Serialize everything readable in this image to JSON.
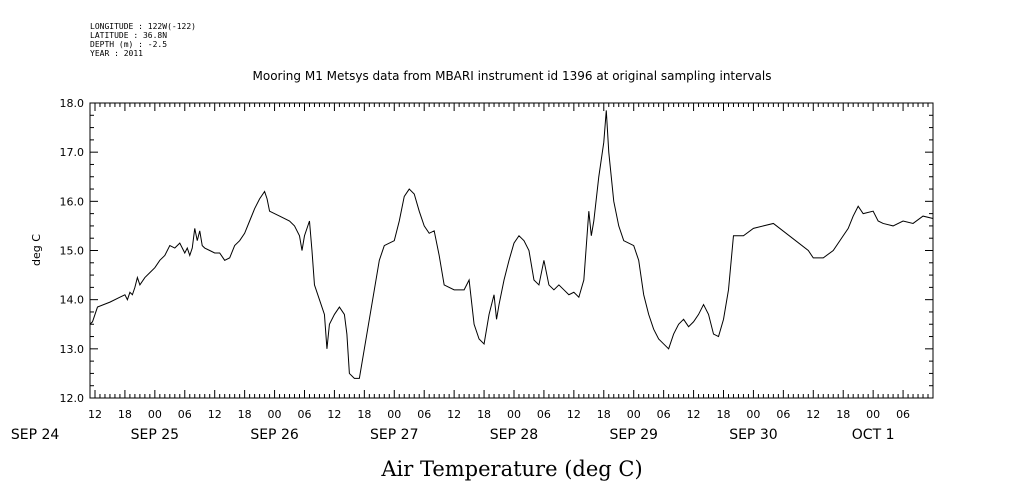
{
  "meta": {
    "longitude": "LONGITUDE : 122W(-122)",
    "latitude": "LATITUDE : 36.8N",
    "depth": "DEPTH (m) : -2.5",
    "year": "YEAR : 2011"
  },
  "chart_data": {
    "type": "line",
    "title": "Mooring M1 Metsys data from MBARI instrument id 1396 at original sampling intervals",
    "xlabel": "Air Temperature (deg C)",
    "ylabel": "deg C",
    "ylim": [
      12.0,
      18.0
    ],
    "xlim": [
      "2011-09-24T11:00",
      "2011-10-01T12:00"
    ],
    "yticks": [
      "12.0",
      "13.0",
      "14.0",
      "15.0",
      "16.0",
      "17.0",
      "18.0"
    ],
    "xtick_hours": [
      "12",
      "18",
      "00",
      "06",
      "12",
      "18",
      "00",
      "06",
      "12",
      "18",
      "00",
      "06",
      "12",
      "18",
      "00",
      "06",
      "12",
      "18",
      "00",
      "06",
      "12",
      "18",
      "00",
      "06",
      "12",
      "18",
      "00",
      "06"
    ],
    "day_labels": [
      {
        "label": "SEP 24",
        "date": "2011-09-24"
      },
      {
        "label": "SEP 25",
        "date": "2011-09-25"
      },
      {
        "label": "SEP 26",
        "date": "2011-09-26"
      },
      {
        "label": "SEP 27",
        "date": "2011-09-27"
      },
      {
        "label": "SEP 28",
        "date": "2011-09-28"
      },
      {
        "label": "SEP 29",
        "date": "2011-09-29"
      },
      {
        "label": "SEP 30",
        "date": "2011-09-30"
      },
      {
        "label": "OCT  1",
        "date": "2011-10-01"
      }
    ],
    "grid": false,
    "series": [
      {
        "color": "#000000",
        "points": [
          [
            "2011-09-24T11:00",
            13.5
          ],
          [
            "2011-09-24T11:30",
            13.55
          ],
          [
            "2011-09-24T12:00",
            13.7
          ],
          [
            "2011-09-24T12:30",
            13.85
          ],
          [
            "2011-09-24T15:00",
            13.95
          ],
          [
            "2011-09-24T17:00",
            14.05
          ],
          [
            "2011-09-24T18:00",
            14.1
          ],
          [
            "2011-09-24T18:30",
            14.0
          ],
          [
            "2011-09-24T19:00",
            14.15
          ],
          [
            "2011-09-24T19:30",
            14.1
          ],
          [
            "2011-09-24T20:00",
            14.25
          ],
          [
            "2011-09-24T20:30",
            14.45
          ],
          [
            "2011-09-24T21:00",
            14.3
          ],
          [
            "2011-09-24T22:00",
            14.45
          ],
          [
            "2011-09-24T23:00",
            14.55
          ],
          [
            "2011-09-25T00:00",
            14.65
          ],
          [
            "2011-09-25T01:00",
            14.8
          ],
          [
            "2011-09-25T02:00",
            14.9
          ],
          [
            "2011-09-25T03:00",
            15.1
          ],
          [
            "2011-09-25T04:00",
            15.05
          ],
          [
            "2011-09-25T05:00",
            15.15
          ],
          [
            "2011-09-25T06:00",
            14.95
          ],
          [
            "2011-09-25T06:30",
            15.05
          ],
          [
            "2011-09-25T07:00",
            14.9
          ],
          [
            "2011-09-25T07:30",
            15.05
          ],
          [
            "2011-09-25T08:00",
            15.45
          ],
          [
            "2011-09-25T08:30",
            15.2
          ],
          [
            "2011-09-25T09:00",
            15.4
          ],
          [
            "2011-09-25T09:30",
            15.1
          ],
          [
            "2011-09-25T10:00",
            15.05
          ],
          [
            "2011-09-25T11:00",
            15.0
          ],
          [
            "2011-09-25T12:00",
            14.95
          ],
          [
            "2011-09-25T13:00",
            14.95
          ],
          [
            "2011-09-25T14:00",
            14.8
          ],
          [
            "2011-09-25T15:00",
            14.85
          ],
          [
            "2011-09-25T16:00",
            15.1
          ],
          [
            "2011-09-25T17:00",
            15.2
          ],
          [
            "2011-09-25T18:00",
            15.35
          ],
          [
            "2011-09-25T19:00",
            15.6
          ],
          [
            "2011-09-25T20:00",
            15.85
          ],
          [
            "2011-09-25T21:00",
            16.05
          ],
          [
            "2011-09-25T22:00",
            16.2
          ],
          [
            "2011-09-25T22:30",
            16.05
          ],
          [
            "2011-09-25T23:00",
            15.8
          ],
          [
            "2011-09-26T01:00",
            15.7
          ],
          [
            "2011-09-26T03:00",
            15.6
          ],
          [
            "2011-09-26T04:00",
            15.5
          ],
          [
            "2011-09-26T05:00",
            15.3
          ],
          [
            "2011-09-26T05:30",
            15.0
          ],
          [
            "2011-09-26T06:00",
            15.3
          ],
          [
            "2011-09-26T07:00",
            15.6
          ],
          [
            "2011-09-26T07:30",
            15.0
          ],
          [
            "2011-09-26T08:00",
            14.3
          ],
          [
            "2011-09-26T09:00",
            14.0
          ],
          [
            "2011-09-26T10:00",
            13.7
          ],
          [
            "2011-09-26T10:30",
            13.0
          ],
          [
            "2011-09-26T11:00",
            13.5
          ],
          [
            "2011-09-26T12:00",
            13.7
          ],
          [
            "2011-09-26T13:00",
            13.85
          ],
          [
            "2011-09-26T14:00",
            13.7
          ],
          [
            "2011-09-26T14:30",
            13.3
          ],
          [
            "2011-09-26T15:00",
            12.5
          ],
          [
            "2011-09-26T16:00",
            12.4
          ],
          [
            "2011-09-26T17:00",
            12.4
          ],
          [
            "2011-09-26T18:00",
            13.0
          ],
          [
            "2011-09-26T19:00",
            13.6
          ],
          [
            "2011-09-26T20:00",
            14.2
          ],
          [
            "2011-09-26T21:00",
            14.8
          ],
          [
            "2011-09-26T22:00",
            15.1
          ],
          [
            "2011-09-27T00:00",
            15.2
          ],
          [
            "2011-09-27T01:00",
            15.6
          ],
          [
            "2011-09-27T02:00",
            16.1
          ],
          [
            "2011-09-27T03:00",
            16.25
          ],
          [
            "2011-09-27T04:00",
            16.15
          ],
          [
            "2011-09-27T05:00",
            15.8
          ],
          [
            "2011-09-27T06:00",
            15.5
          ],
          [
            "2011-09-27T07:00",
            15.35
          ],
          [
            "2011-09-27T08:00",
            15.4
          ],
          [
            "2011-09-27T09:00",
            14.9
          ],
          [
            "2011-09-27T10:00",
            14.3
          ],
          [
            "2011-09-27T12:00",
            14.2
          ],
          [
            "2011-09-27T14:00",
            14.2
          ],
          [
            "2011-09-27T15:00",
            14.4
          ],
          [
            "2011-09-27T16:00",
            13.5
          ],
          [
            "2011-09-27T17:00",
            13.2
          ],
          [
            "2011-09-27T18:00",
            13.1
          ],
          [
            "2011-09-27T19:00",
            13.7
          ],
          [
            "2011-09-27T20:00",
            14.1
          ],
          [
            "2011-09-27T20:30",
            13.6
          ],
          [
            "2011-09-27T21:00",
            13.9
          ],
          [
            "2011-09-27T22:00",
            14.4
          ],
          [
            "2011-09-27T23:00",
            14.8
          ],
          [
            "2011-09-28T00:00",
            15.15
          ],
          [
            "2011-09-28T01:00",
            15.3
          ],
          [
            "2011-09-28T02:00",
            15.2
          ],
          [
            "2011-09-28T03:00",
            15.0
          ],
          [
            "2011-09-28T04:00",
            14.4
          ],
          [
            "2011-09-28T05:00",
            14.3
          ],
          [
            "2011-09-28T06:00",
            14.8
          ],
          [
            "2011-09-28T07:00",
            14.3
          ],
          [
            "2011-09-28T08:00",
            14.2
          ],
          [
            "2011-09-28T09:00",
            14.3
          ],
          [
            "2011-09-28T10:00",
            14.2
          ],
          [
            "2011-09-28T11:00",
            14.1
          ],
          [
            "2011-09-28T12:00",
            14.15
          ],
          [
            "2011-09-28T13:00",
            14.05
          ],
          [
            "2011-09-28T14:00",
            14.4
          ],
          [
            "2011-09-28T15:00",
            15.8
          ],
          [
            "2011-09-28T15:30",
            15.3
          ],
          [
            "2011-09-28T16:00",
            15.6
          ],
          [
            "2011-09-28T17:00",
            16.5
          ],
          [
            "2011-09-28T18:00",
            17.2
          ],
          [
            "2011-09-28T18:30",
            17.85
          ],
          [
            "2011-09-28T19:00",
            17.0
          ],
          [
            "2011-09-28T20:00",
            16.0
          ],
          [
            "2011-09-28T21:00",
            15.5
          ],
          [
            "2011-09-28T22:00",
            15.2
          ],
          [
            "2011-09-29T00:00",
            15.1
          ],
          [
            "2011-09-29T01:00",
            14.8
          ],
          [
            "2011-09-29T02:00",
            14.1
          ],
          [
            "2011-09-29T03:00",
            13.7
          ],
          [
            "2011-09-29T04:00",
            13.4
          ],
          [
            "2011-09-29T05:00",
            13.2
          ],
          [
            "2011-09-29T06:00",
            13.1
          ],
          [
            "2011-09-29T07:00",
            13.0
          ],
          [
            "2011-09-29T08:00",
            13.3
          ],
          [
            "2011-09-29T09:00",
            13.5
          ],
          [
            "2011-09-29T10:00",
            13.6
          ],
          [
            "2011-09-29T11:00",
            13.45
          ],
          [
            "2011-09-29T12:00",
            13.55
          ],
          [
            "2011-09-29T13:00",
            13.7
          ],
          [
            "2011-09-29T14:00",
            13.9
          ],
          [
            "2011-09-29T15:00",
            13.7
          ],
          [
            "2011-09-29T16:00",
            13.3
          ],
          [
            "2011-09-29T17:00",
            13.25
          ],
          [
            "2011-09-29T18:00",
            13.6
          ],
          [
            "2011-09-29T19:00",
            14.2
          ],
          [
            "2011-09-29T20:00",
            15.3
          ],
          [
            "2011-09-29T22:00",
            15.3
          ],
          [
            "2011-09-30T00:00",
            15.45
          ],
          [
            "2011-09-30T02:00",
            15.5
          ],
          [
            "2011-09-30T04:00",
            15.55
          ],
          [
            "2011-09-30T11:00",
            15.0
          ],
          [
            "2011-09-30T12:00",
            14.85
          ],
          [
            "2011-09-30T14:00",
            14.85
          ],
          [
            "2011-09-30T16:00",
            15.0
          ],
          [
            "2011-09-30T18:00",
            15.3
          ],
          [
            "2011-09-30T19:00",
            15.45
          ],
          [
            "2011-09-30T20:00",
            15.7
          ],
          [
            "2011-09-30T21:00",
            15.9
          ],
          [
            "2011-09-30T22:00",
            15.75
          ],
          [
            "2011-10-01T00:00",
            15.8
          ],
          [
            "2011-10-01T01:00",
            15.6
          ],
          [
            "2011-10-01T02:00",
            15.55
          ],
          [
            "2011-10-01T04:00",
            15.5
          ],
          [
            "2011-10-01T06:00",
            15.6
          ],
          [
            "2011-10-01T08:00",
            15.55
          ],
          [
            "2011-10-01T10:00",
            15.7
          ],
          [
            "2011-10-01T12:00",
            15.65
          ]
        ]
      }
    ]
  }
}
